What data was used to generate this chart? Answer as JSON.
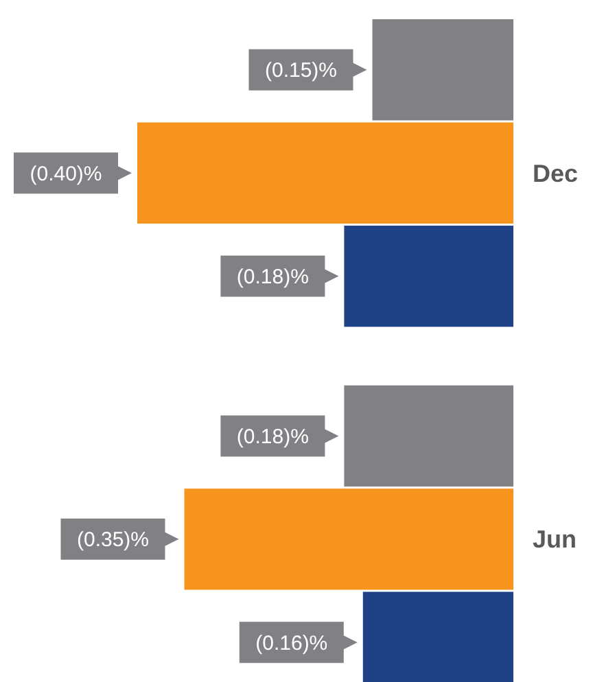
{
  "chart_data": {
    "type": "bar",
    "orientation": "horizontal",
    "categories": [
      "Dec",
      "Jun"
    ],
    "tick_labels": false,
    "series": [
      {
        "color": "#808184",
        "values": [
          -0.15,
          -0.18
        ],
        "value_labels": [
          "(0.15)%",
          "(0.18)%"
        ]
      },
      {
        "color": "#f7941d",
        "values": [
          -0.4,
          -0.35
        ],
        "value_labels": [
          "(0.40)%",
          "(0.35)%"
        ]
      },
      {
        "color": "#1f4287",
        "values": [
          -0.18,
          -0.16
        ],
        "value_labels": [
          "(0.18)%",
          "(0.16)%"
        ]
      }
    ]
  }
}
